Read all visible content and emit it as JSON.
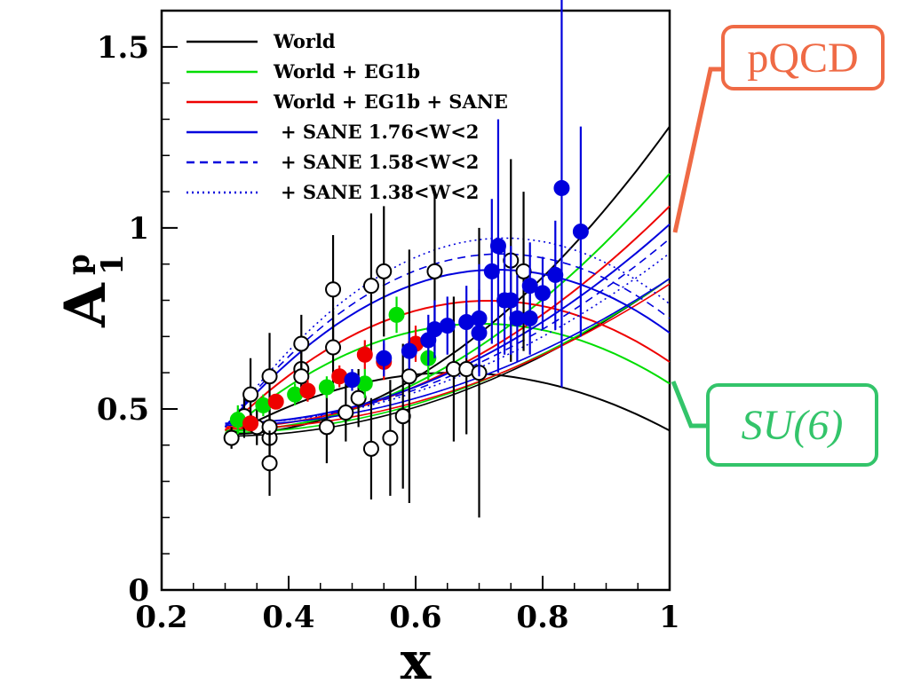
{
  "chart_data": {
    "type": "line",
    "xlabel": "x",
    "ylabel": "A",
    "ylabel_sup": "p",
    "ylabel_sub": "1",
    "xlim": [
      0.2,
      1.0
    ],
    "ylim": [
      0,
      1.6
    ],
    "x_ticks": [
      0.2,
      0.4,
      0.6,
      0.8,
      1.0
    ],
    "x_tick_labels": [
      "0.2",
      "0.4",
      "0.6",
      "0.8",
      "1"
    ],
    "y_ticks": [
      0,
      0.5,
      1.0,
      1.5
    ],
    "y_tick_labels": [
      "0",
      "0.5",
      "1",
      "1.5"
    ],
    "grid": false,
    "legend_position": "top-left",
    "legend": [
      {
        "label": "World",
        "color": "#000000",
        "style": "solid"
      },
      {
        "label": "World + EG1b",
        "color": "#00dd00",
        "style": "solid"
      },
      {
        "label": "World + EG1b + SANE",
        "color": "#ee0000",
        "style": "solid"
      },
      {
        "label": "+ SANE 1.76<W<2",
        "color": "#0000dd",
        "style": "solid"
      },
      {
        "label": "+ SANE 1.58<W<2",
        "color": "#0000dd",
        "style": "dashed"
      },
      {
        "label": "+ SANE 1.38<W<2",
        "color": "#0000dd",
        "style": "dotted"
      }
    ],
    "bands": [
      {
        "name": "World",
        "color": "#000000",
        "style": "solid",
        "x": [
          0.3,
          1.0
        ],
        "upper": [
          0.43,
          1.28
        ],
        "lower": [
          0.42,
          0.44
        ],
        "center": [
          0.425,
          0.86
        ]
      },
      {
        "name": "World + EG1b",
        "color": "#00dd00",
        "style": "solid",
        "x": [
          0.3,
          1.0
        ],
        "upper": [
          0.44,
          1.15
        ],
        "lower": [
          0.43,
          0.57
        ],
        "center": [
          0.435,
          0.86
        ]
      },
      {
        "name": "World + EG1b + SANE",
        "color": "#ee0000",
        "style": "solid",
        "x": [
          0.3,
          1.0
        ],
        "upper": [
          0.45,
          1.06
        ],
        "lower": [
          0.44,
          0.63
        ],
        "center": [
          0.445,
          0.845
        ]
      },
      {
        "name": "+ SANE 1.76<W<2",
        "color": "#0000dd",
        "style": "solid",
        "x": [
          0.3,
          1.0
        ],
        "upper": [
          0.46,
          1.01
        ],
        "lower": [
          0.45,
          0.71
        ],
        "center": [
          0.455,
          0.86
        ]
      },
      {
        "name": "+ SANE 1.58<W<2",
        "color": "#0000dd",
        "style": "dashed",
        "x": [
          0.3,
          1.0
        ],
        "upper": [
          0.46,
          0.97
        ],
        "lower": [
          0.45,
          0.75
        ],
        "center": [
          0.455,
          0.86
        ]
      },
      {
        "name": "+ SANE 1.38<W<2",
        "color": "#0000dd",
        "style": "dotted",
        "x": [
          0.3,
          1.0
        ],
        "upper": [
          0.46,
          0.93
        ],
        "lower": [
          0.45,
          0.79
        ],
        "center": [
          0.455,
          0.86
        ]
      }
    ],
    "points": [
      {
        "group": "World",
        "color": "#000000",
        "filled": false,
        "data": [
          [
            0.31,
            0.42,
            0.03
          ],
          [
            0.33,
            0.48,
            0.06
          ],
          [
            0.34,
            0.54,
            0.1
          ],
          [
            0.35,
            0.45,
            0.05
          ],
          [
            0.37,
            0.42,
            0.05
          ],
          [
            0.37,
            0.45,
            0.05
          ],
          [
            0.37,
            0.59,
            0.12
          ],
          [
            0.37,
            0.35,
            0.09
          ],
          [
            0.42,
            0.61,
            0.05
          ],
          [
            0.42,
            0.68,
            0.08
          ],
          [
            0.42,
            0.59,
            0.04
          ],
          [
            0.46,
            0.45,
            0.1
          ],
          [
            0.47,
            0.83,
            0.15
          ],
          [
            0.47,
            0.67,
            0.1
          ],
          [
            0.49,
            0.49,
            0.08
          ],
          [
            0.51,
            0.53,
            0.08
          ],
          [
            0.53,
            0.39,
            0.14
          ],
          [
            0.53,
            0.84,
            0.2
          ],
          [
            0.55,
            0.88,
            0.18
          ],
          [
            0.56,
            0.42,
            0.16
          ],
          [
            0.58,
            0.48,
            0.2
          ],
          [
            0.59,
            0.59,
            0.35
          ],
          [
            0.63,
            0.88,
            0.22
          ],
          [
            0.66,
            0.61,
            0.2
          ],
          [
            0.68,
            0.61,
            0.18
          ],
          [
            0.7,
            0.6,
            0.4
          ],
          [
            0.75,
            0.91,
            0.28
          ],
          [
            0.77,
            0.88,
            0.22
          ]
        ]
      },
      {
        "group": "EG1b",
        "color": "#00dd00",
        "filled": true,
        "data": [
          [
            0.32,
            0.47,
            0.04
          ],
          [
            0.36,
            0.51,
            0.03
          ],
          [
            0.41,
            0.54,
            0.03
          ],
          [
            0.46,
            0.56,
            0.03
          ],
          [
            0.52,
            0.57,
            0.04
          ],
          [
            0.57,
            0.76,
            0.05
          ],
          [
            0.62,
            0.64,
            0.06
          ]
        ]
      },
      {
        "group": "SANE",
        "color": "#ee0000",
        "filled": true,
        "data": [
          [
            0.34,
            0.46,
            0.02
          ],
          [
            0.38,
            0.52,
            0.02
          ],
          [
            0.43,
            0.55,
            0.03
          ],
          [
            0.48,
            0.59,
            0.03
          ],
          [
            0.52,
            0.65,
            0.04
          ],
          [
            0.55,
            0.63,
            0.05
          ],
          [
            0.6,
            0.68,
            0.05
          ]
        ]
      },
      {
        "group": "SANE W",
        "color": "#0000dd",
        "filled": true,
        "data": [
          [
            0.5,
            0.58,
            0.03
          ],
          [
            0.55,
            0.64,
            0.05
          ],
          [
            0.59,
            0.66,
            0.05
          ],
          [
            0.62,
            0.69,
            0.07
          ],
          [
            0.63,
            0.72,
            0.08
          ],
          [
            0.65,
            0.73,
            0.08
          ],
          [
            0.68,
            0.74,
            0.1
          ],
          [
            0.7,
            0.75,
            0.15
          ],
          [
            0.7,
            0.71,
            0.12
          ],
          [
            0.72,
            0.88,
            0.2
          ],
          [
            0.73,
            0.95,
            0.35
          ],
          [
            0.74,
            0.8,
            0.15
          ],
          [
            0.75,
            0.8,
            0.15
          ],
          [
            0.76,
            0.75,
            0.12
          ],
          [
            0.78,
            0.84,
            0.12
          ],
          [
            0.78,
            0.75,
            0.1
          ],
          [
            0.8,
            0.82,
            0.1
          ],
          [
            0.82,
            0.87,
            0.15
          ],
          [
            0.83,
            1.11,
            0.55
          ],
          [
            0.86,
            0.99,
            0.29
          ]
        ]
      }
    ],
    "callouts": {
      "pqcd": {
        "label": "pQCD",
        "color": "#ef6a45"
      },
      "su6": {
        "label_prefix": "SU(",
        "label_number": "6",
        "label_suffix": ")",
        "color": "#33c46a"
      }
    }
  }
}
